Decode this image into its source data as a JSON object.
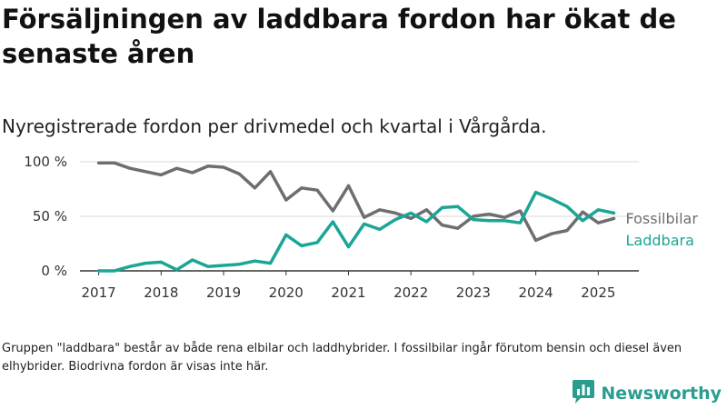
{
  "header": {
    "title": "Försäljningen av laddbara fordon har ökat de senaste åren",
    "subtitle": "Nyregistrerade fordon per drivmedel och kvartal i Vårgårda."
  },
  "footnote": "Gruppen \"laddbara\" består av både rena elbilar och laddhybrider. I fossilbilar ingår förutom bensin och diesel även elhybrider. Biodrivna fordon är visas inte här.",
  "brand": {
    "name": "Newsworthy",
    "logo_icon": "bar-chart-icon",
    "color": "#2a9d8f"
  },
  "chart_data": {
    "type": "line",
    "title": "",
    "xlabel": "",
    "ylabel": "",
    "x": [
      2017.0,
      2017.25,
      2017.5,
      2017.75,
      2018.0,
      2018.25,
      2018.5,
      2018.75,
      2019.0,
      2019.25,
      2019.5,
      2019.75,
      2020.0,
      2020.25,
      2020.5,
      2020.75,
      2021.0,
      2021.25,
      2021.5,
      2021.75,
      2022.0,
      2022.25,
      2022.5,
      2022.75,
      2023.0,
      2023.25,
      2023.5,
      2023.75,
      2024.0,
      2024.25,
      2024.5,
      2024.75,
      2025.0,
      2025.25
    ],
    "xlim": [
      2016.7,
      2025.65
    ],
    "ylim": [
      0,
      100
    ],
    "x_ticks": [
      2017,
      2018,
      2019,
      2020,
      2021,
      2022,
      2023,
      2024,
      2025
    ],
    "x_tick_labels": [
      "2017",
      "2018",
      "2019",
      "2020",
      "2021",
      "2022",
      "2023",
      "2024",
      "2025"
    ],
    "y_ticks": [
      0,
      50,
      100
    ],
    "y_tick_labels": [
      "0 %",
      "50 %",
      "100 %"
    ],
    "grid": "horizontal",
    "legend": "end-of-line labels",
    "series": [
      {
        "name": "Fossilbilar",
        "color": "#6e6e72",
        "values": [
          99,
          99,
          94,
          91,
          88,
          94,
          90,
          96,
          95,
          89,
          76,
          91,
          65,
          76,
          74,
          55,
          78,
          49,
          56,
          53,
          48,
          56,
          42,
          39,
          50,
          52,
          49,
          55,
          28,
          34,
          37,
          54,
          44,
          48
        ]
      },
      {
        "name": "Laddbara",
        "color": "#1aa696",
        "values": [
          0,
          0,
          4,
          7,
          8,
          1,
          10,
          4,
          5,
          6,
          9,
          7,
          33,
          23,
          26,
          45,
          22,
          43,
          38,
          47,
          53,
          45,
          58,
          59,
          47,
          46,
          46,
          44,
          72,
          66,
          59,
          46,
          56,
          53
        ]
      }
    ]
  }
}
